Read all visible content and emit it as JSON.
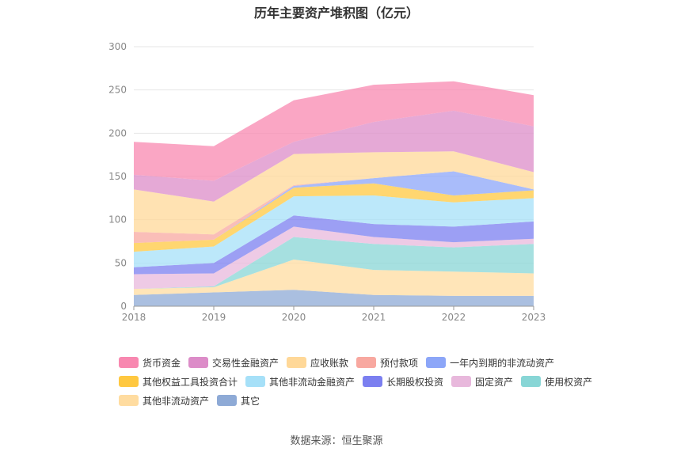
{
  "title": "历年主要资产堆积图（亿元）",
  "source": "数据来源：恒生聚源",
  "chart_data": {
    "type": "area",
    "stacked": true,
    "x": [
      "2018",
      "2019",
      "2020",
      "2021",
      "2022",
      "2023"
    ],
    "ylim": [
      0,
      300
    ],
    "yticks": [
      0,
      50,
      100,
      150,
      200,
      250,
      300
    ],
    "grid": true,
    "legend_position": "bottom",
    "series": [
      {
        "name": "其它",
        "color": "#8eaad6",
        "values": [
          13,
          16,
          19,
          13,
          12,
          12
        ]
      },
      {
        "name": "其他非流动资产",
        "color": "#ffdca0",
        "values": [
          7,
          6,
          35,
          29,
          28,
          26
        ]
      },
      {
        "name": "使用权资产",
        "color": "#88d6d6",
        "values": [
          0,
          1,
          26,
          30,
          28,
          34
        ]
      },
      {
        "name": "固定资产",
        "color": "#e8b8dc",
        "values": [
          17,
          15,
          12,
          8,
          6,
          6
        ]
      },
      {
        "name": "长期股权投资",
        "color": "#7b7ff0",
        "values": [
          8,
          12,
          13,
          15,
          18,
          20
        ]
      },
      {
        "name": "其他非流动金融资产",
        "color": "#a6e0f8",
        "values": [
          18,
          19,
          22,
          33,
          28,
          27
        ]
      },
      {
        "name": "其他权益工具投资合计",
        "color": "#ffc840",
        "values": [
          10,
          8,
          10,
          14,
          8,
          9
        ]
      },
      {
        "name": "一年内到期的非流动资产",
        "color": "#8ca6f8",
        "values": [
          0,
          0,
          2,
          6,
          28,
          1
        ]
      },
      {
        "name": "预付款项",
        "color": "#f8a8a0",
        "values": [
          13,
          6,
          1,
          0,
          0,
          0
        ]
      },
      {
        "name": "应收账款",
        "color": "#ffd898",
        "values": [
          49,
          38,
          36,
          30,
          23,
          20
        ]
      },
      {
        "name": "交易性金融资产",
        "color": "#dc8cc8",
        "values": [
          17,
          24,
          14,
          35,
          47,
          53
        ]
      },
      {
        "name": "货币资金",
        "color": "#f888b0",
        "values": [
          38,
          40,
          48,
          43,
          34,
          36
        ]
      }
    ]
  },
  "legend": [
    {
      "label": "货币资金",
      "color": "#f888b0"
    },
    {
      "label": "交易性金融资产",
      "color": "#dc8cc8"
    },
    {
      "label": "应收账款",
      "color": "#ffd898"
    },
    {
      "label": "预付款项",
      "color": "#f8a8a0"
    },
    {
      "label": "一年内到期的非流动资产",
      "color": "#8ca6f8"
    },
    {
      "label": "其他权益工具投资合计",
      "color": "#ffc840"
    },
    {
      "label": "其他非流动金融资产",
      "color": "#a6e0f8"
    },
    {
      "label": "长期股权投资",
      "color": "#7b7ff0"
    },
    {
      "label": "固定资产",
      "color": "#e8b8dc"
    },
    {
      "label": "使用权资产",
      "color": "#88d6d6"
    },
    {
      "label": "其他非流动资产",
      "color": "#ffdca0"
    },
    {
      "label": "其它",
      "color": "#8eaad6"
    }
  ]
}
